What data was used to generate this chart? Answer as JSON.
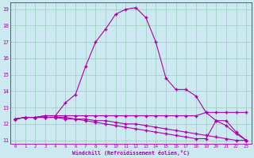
{
  "xlabel": "Windchill (Refroidissement éolien,°C)",
  "background_color": "#cce8f0",
  "grid_color": "#aaddcc",
  "line_color": "#aa00aa",
  "x_values": [
    0,
    1,
    2,
    3,
    4,
    5,
    6,
    7,
    8,
    9,
    10,
    11,
    12,
    13,
    14,
    15,
    16,
    17,
    18,
    19,
    20,
    21,
    22,
    23
  ],
  "curve_big": [
    12.3,
    12.4,
    12.4,
    12.5,
    12.5,
    13.3,
    13.8,
    15.5,
    17.0,
    17.8,
    18.7,
    19.0,
    19.1,
    18.5,
    17.0,
    14.8,
    14.1,
    14.1,
    13.7,
    12.7,
    12.2,
    12.2,
    11.5,
    11.0
  ],
  "curve_flat": [
    12.3,
    12.4,
    12.4,
    12.5,
    12.5,
    12.5,
    12.5,
    12.5,
    12.5,
    12.5,
    12.5,
    12.5,
    12.5,
    12.5,
    12.5,
    12.5,
    12.5,
    12.5,
    12.5,
    12.7,
    12.7,
    12.7,
    12.7,
    12.7
  ],
  "curve_decline": [
    12.3,
    12.4,
    12.4,
    12.4,
    12.4,
    12.4,
    12.3,
    12.3,
    12.2,
    12.2,
    12.1,
    12.0,
    12.0,
    11.9,
    11.8,
    11.7,
    11.6,
    11.5,
    11.4,
    11.3,
    11.2,
    11.1,
    11.0,
    11.0
  ],
  "curve_bump": [
    12.3,
    12.4,
    12.4,
    12.4,
    12.4,
    12.3,
    12.3,
    12.2,
    12.1,
    12.0,
    11.9,
    11.8,
    11.7,
    11.6,
    11.5,
    11.4,
    11.3,
    11.2,
    11.1,
    11.1,
    12.2,
    11.9,
    11.4,
    11.0
  ],
  "ylim_min": 10.8,
  "ylim_max": 19.4,
  "yticks": [
    11,
    12,
    13,
    14,
    15,
    16,
    17,
    18,
    19
  ],
  "xticks": [
    0,
    1,
    2,
    3,
    4,
    5,
    6,
    7,
    8,
    9,
    10,
    11,
    12,
    13,
    14,
    15,
    16,
    17,
    18,
    19,
    20,
    21,
    22,
    23
  ]
}
